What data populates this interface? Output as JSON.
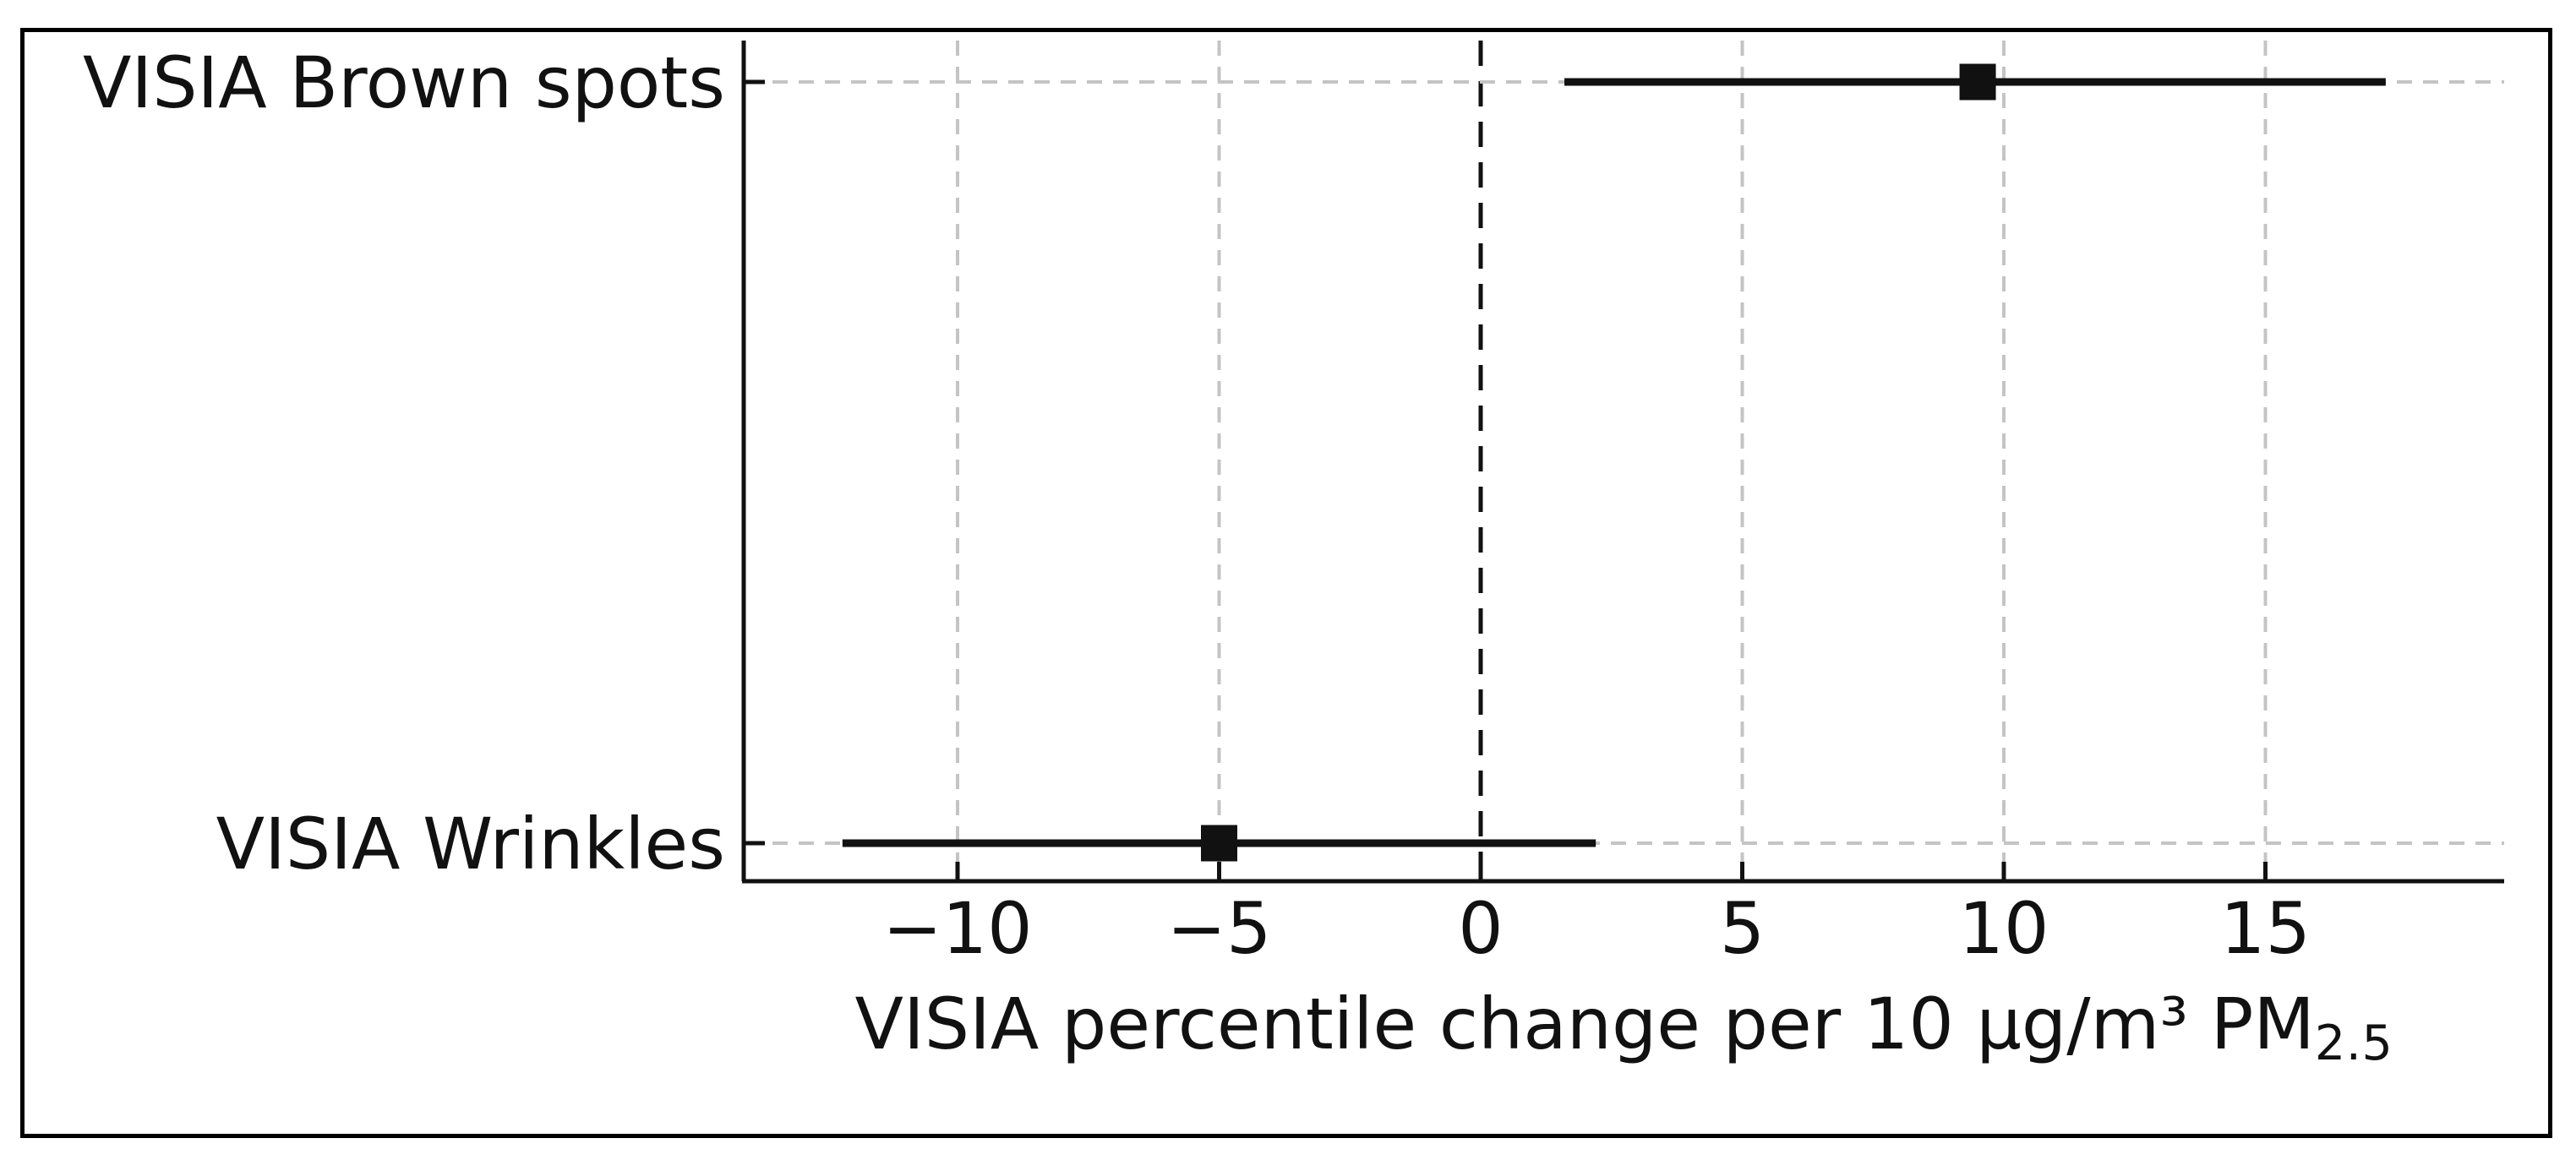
{
  "figure": {
    "background_color": "#ffffff",
    "border_color": "#000000"
  },
  "chart_data": {
    "type": "forest_plot",
    "orientation": "horizontal",
    "title": "",
    "xlabel_main": "VISIA percentile change per 10 μg/m³ PM",
    "xlabel_sub": "2.5",
    "xlabel_full": "VISIA percentile change per 10 μg/m³ PM2.5",
    "series": [
      {
        "label": "VISIA Brown spots",
        "estimate": 9.5,
        "ci_low": 1.6,
        "ci_high": 17.3
      },
      {
        "label": "VISIA Wrinkles",
        "estimate": -5.0,
        "ci_low": -12.2,
        "ci_high": 2.2
      }
    ],
    "xticks": [
      -10,
      -5,
      0,
      5,
      10,
      15
    ],
    "xtick_labels": [
      "−10",
      "−5",
      "0",
      "5",
      "10",
      "15"
    ],
    "xlim": [
      -14.1,
      19.6
    ],
    "reference_line_x": 0,
    "grid": true,
    "legend": null,
    "marker_shape": "square",
    "colors": {
      "marker": "#111111",
      "ci_line": "#111111",
      "spine": "#111111",
      "reference_line": "#111111",
      "grid": "#c4c4c4",
      "text": "#111111"
    }
  }
}
